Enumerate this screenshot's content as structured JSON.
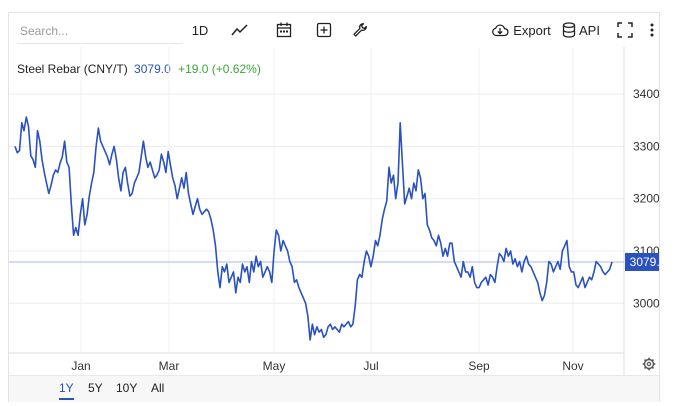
{
  "toolbar": {
    "search_placeholder": "Search...",
    "interval_label": "1D",
    "export_label": "Export",
    "api_label": "API"
  },
  "legend": {
    "name": "Steel Rebar (CNY/T)",
    "value": "3079.0",
    "change": "+19.0 (+0.62%)"
  },
  "ranges": [
    "1Y",
    "5Y",
    "10Y",
    "All"
  ],
  "active_range": "1Y",
  "colors": {
    "line": "#2a52be",
    "change_positive": "#3aa635"
  },
  "chart_data": {
    "type": "line",
    "title": "Steel Rebar (CNY/T)",
    "x_tick_labels": [
      "Jan",
      "Mar",
      "May",
      "Jul",
      "Sep",
      "Nov"
    ],
    "y_tick_labels": [
      3400,
      3300,
      3200,
      3100,
      3000
    ],
    "ylim": [
      2905,
      3490
    ],
    "last_price_label": "3079.0",
    "last_price": 3079.0,
    "grid": true,
    "series": [
      {
        "values": [
          3300,
          3288,
          3292,
          3345,
          3330,
          3356,
          3338,
          3282,
          3275,
          3260,
          3330,
          3310,
          3275,
          3250,
          3230,
          3210,
          3225,
          3245,
          3255,
          3250,
          3268,
          3280,
          3310,
          3270,
          3260,
          3190,
          3130,
          3145,
          3130,
          3170,
          3200,
          3150,
          3170,
          3205,
          3230,
          3250,
          3300,
          3335,
          3310,
          3300,
          3290,
          3280,
          3265,
          3285,
          3300,
          3275,
          3240,
          3215,
          3250,
          3260,
          3230,
          3205,
          3210,
          3230,
          3240,
          3250,
          3280,
          3310,
          3280,
          3260,
          3270,
          3255,
          3240,
          3245,
          3255,
          3285,
          3270,
          3250,
          3290,
          3265,
          3240,
          3225,
          3200,
          3220,
          3240,
          3220,
          3250,
          3210,
          3190,
          3170,
          3185,
          3200,
          3180,
          3170,
          3175,
          3180,
          3175,
          3160,
          3140,
          3110,
          3060,
          3030,
          3070,
          3060,
          3075,
          3040,
          3050,
          3060,
          3020,
          3050,
          3040,
          3075,
          3060,
          3070,
          3040,
          3080,
          3060,
          3090,
          3070,
          3080,
          3050,
          3060,
          3070,
          3060,
          3040,
          3100,
          3140,
          3130,
          3100,
          3120,
          3110,
          3100,
          3080,
          3070,
          3040,
          3045,
          3030,
          3020,
          3010,
          3000,
          2975,
          2930,
          2960,
          2940,
          2955,
          2945,
          2950,
          2935,
          2940,
          2955,
          2960,
          2950,
          2955,
          2950,
          2945,
          2960,
          2955,
          2960,
          2965,
          2955,
          2960,
          2995,
          3045,
          3055,
          3050,
          3080,
          3100,
          3090,
          3070,
          3090,
          3120,
          3110,
          3130,
          3160,
          3180,
          3195,
          3260,
          3230,
          3245,
          3200,
          3230,
          3345,
          3265,
          3190,
          3205,
          3220,
          3200,
          3230,
          3215,
          3255,
          3240,
          3200,
          3210,
          3150,
          3140,
          3125,
          3120,
          3110,
          3130,
          3115,
          3090,
          3105,
          3090,
          3115,
          3115,
          3080,
          3070,
          3060,
          3050,
          3080,
          3060,
          3060,
          3050,
          3070,
          3040,
          3030,
          3030,
          3040,
          3045,
          3050,
          3035,
          3055,
          3050,
          3040,
          3070,
          3095,
          3090,
          3080,
          3105,
          3090,
          3100,
          3075,
          3085,
          3070,
          3080,
          3060,
          3080,
          3090,
          3075,
          3070,
          3060,
          3050,
          3040,
          3020,
          3005,
          3015,
          3040,
          3080,
          3075,
          3060,
          3070,
          3080,
          3065,
          3100,
          3110,
          3120,
          3070,
          3060,
          3060,
          3035,
          3030,
          3040,
          3050,
          3030,
          3040,
          3050,
          3045,
          3060,
          3080,
          3075,
          3070,
          3060,
          3055,
          3060,
          3065,
          3079
        ]
      }
    ]
  }
}
